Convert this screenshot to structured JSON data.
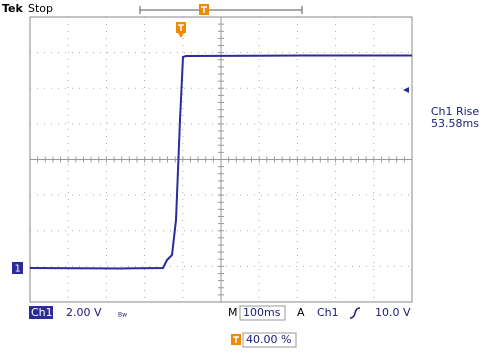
{
  "header": {
    "brand": "Tek",
    "status": "Stop"
  },
  "measurement": {
    "label": "Ch1 Rise",
    "value": "53.58ms"
  },
  "channel_marker": "1",
  "status_bar": {
    "channel": "Ch1",
    "scale": "2.00 V",
    "bandwidth": "Bw",
    "timebase_prefix": "M",
    "timebase": "100ms",
    "trigger_mode": "A",
    "trigger_source": "Ch1",
    "trigger_level": "10.0 V"
  },
  "trigger_position": "40.00 %"
}
